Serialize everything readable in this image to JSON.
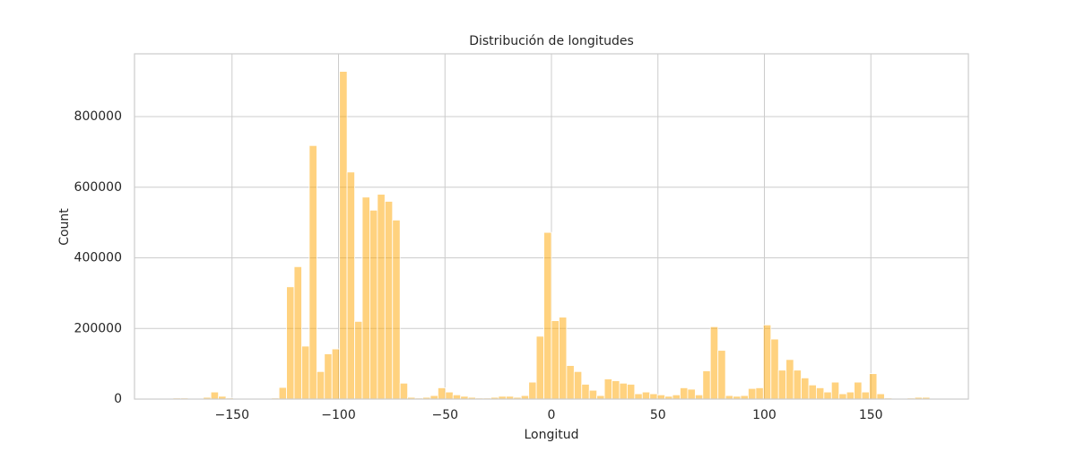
{
  "chart_data": {
    "type": "histogram",
    "title": "Distribución de longitudes",
    "x_label": "Longitud",
    "y_label": "Count",
    "color": "#ffa500",
    "grid": true,
    "bins": [
      -177.7,
      -174.15,
      -170.59,
      -167.04,
      -163.48,
      -159.93,
      -156.38,
      -152.82,
      -149.27,
      -145.71,
      -142.16,
      -138.61,
      -135.05,
      -131.5,
      -127.94,
      -124.39,
      -120.84,
      -117.28,
      -113.73,
      -110.17,
      -106.62,
      -103.07,
      -99.51,
      -95.96,
      -92.4,
      -88.85,
      -85.3,
      -81.74,
      -78.19,
      -74.63,
      -71.08,
      -67.53,
      -63.97,
      -60.42,
      -56.86,
      -53.31,
      -49.76,
      -46.2,
      -42.65,
      -39.09,
      -35.54,
      -31.99,
      -28.43,
      -24.88,
      -21.32,
      -17.77,
      -14.22,
      -10.66,
      -7.11,
      -3.55,
      0,
      3.55,
      7.11,
      10.66,
      14.22,
      17.77,
      21.32,
      24.88,
      28.43,
      31.99,
      35.54,
      39.09,
      42.65,
      46.2,
      49.76,
      53.31,
      56.86,
      60.42,
      63.97,
      67.53,
      71.08,
      74.63,
      78.19,
      81.74,
      85.3,
      88.85,
      92.4,
      95.96,
      99.51,
      103.07,
      106.62,
      110.17,
      113.73,
      117.28,
      120.84,
      124.39,
      127.94,
      131.5,
      135.05,
      138.61,
      142.16,
      145.71,
      149.27,
      152.82,
      156.38,
      159.93,
      163.48,
      167.04,
      170.59,
      174.15,
      177.7
    ],
    "values": [
      3000,
      3000,
      1000,
      2000,
      5000,
      20000,
      8000,
      3000,
      2000,
      1000,
      1000,
      1000,
      2000,
      3000,
      33000,
      318000,
      375000,
      150000,
      718000,
      78000,
      128000,
      142000,
      928000,
      643000,
      220000,
      572000,
      535000,
      580000,
      560000,
      507000,
      45000,
      5000,
      3000,
      5000,
      10000,
      32000,
      20000,
      12000,
      8000,
      5000,
      3000,
      3000,
      5000,
      8000,
      8000,
      5000,
      10000,
      48000,
      178000,
      472000,
      222000,
      232000,
      95000,
      78000,
      42000,
      25000,
      10000,
      57000,
      52000,
      45000,
      42000,
      15000,
      20000,
      15000,
      12000,
      8000,
      12000,
      32000,
      28000,
      12000,
      80000,
      205000,
      138000,
      10000,
      8000,
      10000,
      30000,
      32000,
      210000,
      170000,
      82000,
      112000,
      82000,
      60000,
      40000,
      32000,
      20000,
      48000,
      15000,
      20000,
      48000,
      20000,
      72000,
      15000,
      3000,
      2000,
      2000,
      3000,
      5000,
      5000
    ],
    "xlim": [
      -195.8,
      195.8
    ],
    "ylim": [
      0,
      977778
    ],
    "xticks": [
      {
        "value": -150,
        "label": "−150"
      },
      {
        "value": -100,
        "label": "−100"
      },
      {
        "value": -50,
        "label": "−50"
      },
      0,
      50,
      100,
      150
    ],
    "yticks": [
      0,
      200000,
      400000,
      600000,
      800000
    ]
  }
}
